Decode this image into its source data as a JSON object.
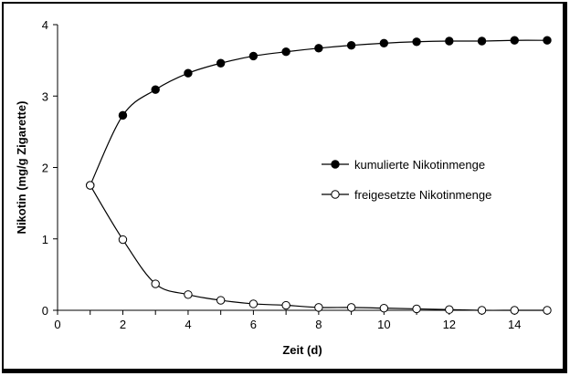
{
  "chart_data": {
    "type": "line",
    "xlabel": "Zeit (d)",
    "ylabel": "Nikotin (mg/g Zigarette)",
    "xlim": [
      0,
      15
    ],
    "ylim": [
      0,
      4
    ],
    "xticks": [
      0,
      2,
      4,
      6,
      8,
      10,
      12,
      14
    ],
    "yticks": [
      0,
      1,
      2,
      3,
      4
    ],
    "grid": false,
    "legend_position": "right-middle",
    "series": [
      {
        "name": "kumulierte Nikotinmenge",
        "marker": "filled-circle",
        "color": "#000000",
        "x": [
          1,
          2,
          3,
          4,
          5,
          6,
          7,
          8,
          9,
          10,
          11,
          12,
          13,
          14,
          15
        ],
        "y": [
          1.75,
          2.73,
          3.09,
          3.32,
          3.46,
          3.56,
          3.62,
          3.67,
          3.71,
          3.74,
          3.76,
          3.77,
          3.77,
          3.78,
          3.78
        ]
      },
      {
        "name": "freigesetzte Nikotinmenge",
        "marker": "open-circle",
        "color": "#000000",
        "x": [
          1,
          2,
          3,
          4,
          5,
          6,
          7,
          8,
          9,
          10,
          11,
          12,
          13,
          14,
          15
        ],
        "y": [
          1.75,
          0.99,
          0.37,
          0.22,
          0.14,
          0.09,
          0.07,
          0.04,
          0.04,
          0.03,
          0.02,
          0.01,
          0.0,
          0.0,
          0.0
        ]
      }
    ]
  }
}
